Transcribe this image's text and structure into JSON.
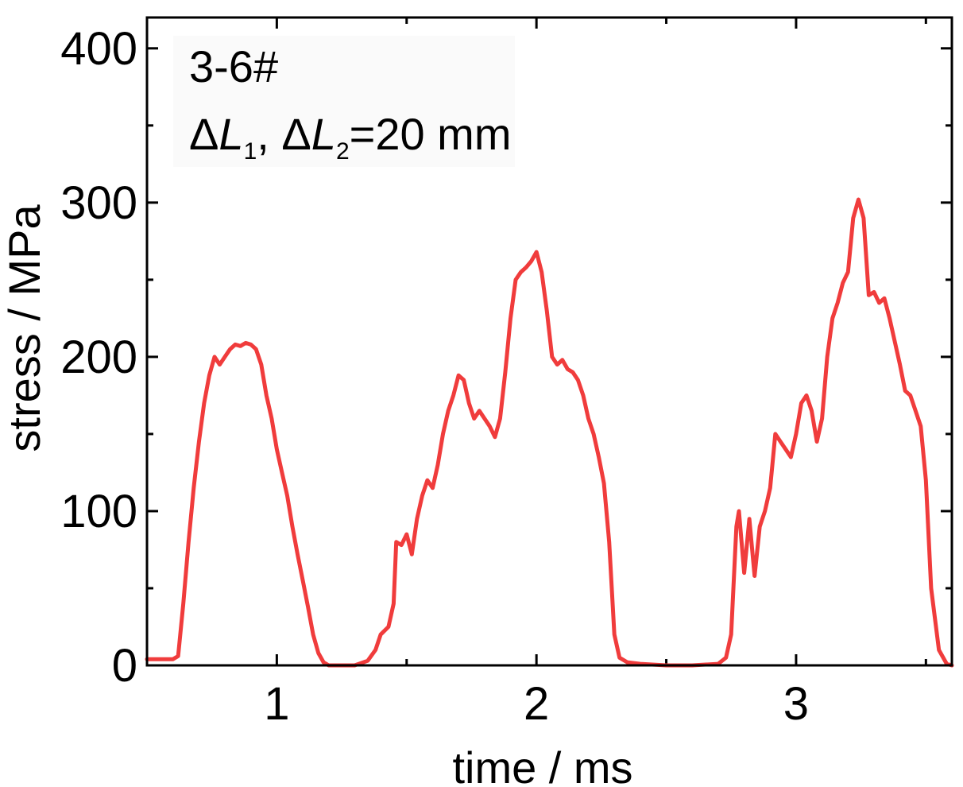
{
  "chart_data": {
    "type": "line",
    "xlabel": "time / ms",
    "ylabel": "stress / MPa",
    "xlim": [
      0.5,
      3.6
    ],
    "ylim": [
      0,
      420
    ],
    "x_ticks": [
      1,
      2,
      3
    ],
    "y_ticks": [
      0,
      100,
      200,
      300,
      400
    ],
    "grid": false,
    "legend": "none",
    "annotation": {
      "line1": "3-6#",
      "delta1": "Δ",
      "L1": "L",
      "sub1": "1",
      "sep": ", ",
      "delta2": "Δ",
      "L2": "L",
      "sub2": "2",
      "value": "=20 mm"
    },
    "series": [
      {
        "color": "#f03c3c",
        "x": [
          0.5,
          0.6,
          0.62,
          0.64,
          0.66,
          0.68,
          0.7,
          0.72,
          0.74,
          0.76,
          0.78,
          0.8,
          0.82,
          0.84,
          0.86,
          0.88,
          0.9,
          0.92,
          0.94,
          0.96,
          0.98,
          1.0,
          1.02,
          1.04,
          1.06,
          1.08,
          1.1,
          1.12,
          1.14,
          1.16,
          1.18,
          1.2,
          1.25,
          1.3,
          1.35,
          1.38,
          1.4,
          1.43,
          1.45,
          1.46,
          1.48,
          1.5,
          1.52,
          1.54,
          1.56,
          1.58,
          1.6,
          1.62,
          1.64,
          1.66,
          1.68,
          1.7,
          1.72,
          1.74,
          1.76,
          1.78,
          1.8,
          1.82,
          1.84,
          1.86,
          1.88,
          1.9,
          1.92,
          1.94,
          1.96,
          1.98,
          2.0,
          2.02,
          2.04,
          2.06,
          2.08,
          2.1,
          2.12,
          2.14,
          2.16,
          2.18,
          2.2,
          2.22,
          2.24,
          2.26,
          2.28,
          2.3,
          2.32,
          2.35,
          2.4,
          2.5,
          2.6,
          2.7,
          2.73,
          2.75,
          2.77,
          2.78,
          2.8,
          2.82,
          2.84,
          2.86,
          2.88,
          2.9,
          2.92,
          2.94,
          2.96,
          2.98,
          3.0,
          3.02,
          3.04,
          3.06,
          3.08,
          3.1,
          3.12,
          3.14,
          3.16,
          3.18,
          3.2,
          3.22,
          3.24,
          3.26,
          3.28,
          3.3,
          3.32,
          3.34,
          3.36,
          3.38,
          3.4,
          3.42,
          3.44,
          3.46,
          3.48,
          3.5,
          3.52,
          3.55,
          3.58,
          3.6
        ],
        "y": [
          4,
          4,
          6,
          40,
          80,
          115,
          145,
          170,
          188,
          200,
          195,
          200,
          205,
          208,
          207,
          209,
          208,
          205,
          195,
          175,
          160,
          140,
          125,
          110,
          90,
          72,
          55,
          38,
          20,
          8,
          2,
          0,
          0,
          0,
          3,
          10,
          20,
          25,
          40,
          80,
          78,
          85,
          72,
          95,
          110,
          120,
          115,
          130,
          150,
          165,
          175,
          188,
          185,
          170,
          160,
          165,
          160,
          155,
          148,
          160,
          190,
          225,
          250,
          255,
          258,
          262,
          268,
          255,
          230,
          200,
          195,
          198,
          192,
          190,
          185,
          175,
          160,
          150,
          135,
          118,
          80,
          20,
          5,
          2,
          1,
          0,
          0,
          1,
          5,
          20,
          90,
          100,
          60,
          95,
          58,
          90,
          100,
          115,
          150,
          145,
          140,
          135,
          150,
          170,
          175,
          165,
          145,
          160,
          200,
          225,
          235,
          248,
          255,
          290,
          302,
          290,
          240,
          242,
          235,
          238,
          225,
          210,
          195,
          178,
          175,
          165,
          155,
          120,
          50,
          10,
          1,
          0
        ]
      }
    ]
  }
}
